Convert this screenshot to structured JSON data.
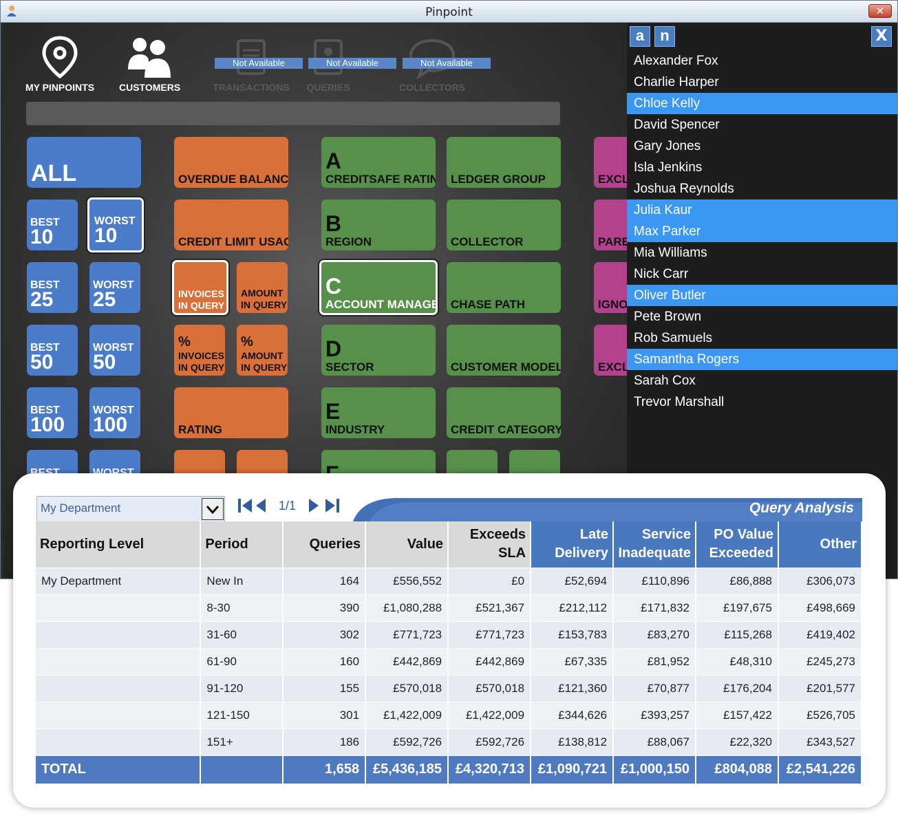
{
  "window": {
    "title": "Pinpoint"
  },
  "nav": {
    "my_pinpoints": "MY PINPOINTS",
    "customers": "CUSTOMERS",
    "transactions": "TRANSACTIONS",
    "queries": "QUERIES",
    "collectors": "COLLECTORS",
    "not_available": "Not Available"
  },
  "tiles": {
    "all": "ALL",
    "best": "BEST",
    "worst": "WORST",
    "n10": "10",
    "n25": "25",
    "n50": "50",
    "n100": "100",
    "overdue_balance": "OVERDUE BALANCE",
    "credit_limit_usage": "CREDIT LIMIT USAGE",
    "invoices_in_query_1": "INVOICES",
    "invoices_in_query_2": "IN QUERY",
    "amount_in_query_1": "AMOUNT",
    "amount_in_query_2": "IN QUERY",
    "pct": "%",
    "rating": "RATING",
    "letter_a": "A",
    "creditsafe_rating": "CREDITSAFE RATING",
    "letter_b": "B",
    "region": "REGION",
    "letter_c": "C",
    "account_manager": "ACCOUNT MANAGER",
    "letter_d": "D",
    "sector": "SECTOR",
    "letter_e": "E",
    "industry": "INDUSTRY",
    "letter_f": "F",
    "ledger_group": "LEDGER GROUP",
    "collector": "COLLECTOR",
    "chase_path": "CHASE PATH",
    "customer_model": "CUSTOMER MODEL",
    "credit_category": "CREDIT CATEGORY",
    "pink1": "EXCLU",
    "pink2": "PAREN",
    "pink3": "IGNOR",
    "pink4": "EXCLU"
  },
  "sidebar": {
    "keys": [
      "a",
      "n"
    ],
    "close": "X",
    "names": [
      {
        "name": "Alexander Fox",
        "selected": false
      },
      {
        "name": "Charlie Harper",
        "selected": false
      },
      {
        "name": "Chloe Kelly",
        "selected": true
      },
      {
        "name": "David Spencer",
        "selected": false
      },
      {
        "name": "Gary Jones",
        "selected": false
      },
      {
        "name": "Isla Jenkins",
        "selected": false
      },
      {
        "name": "Joshua Reynolds",
        "selected": false
      },
      {
        "name": "Julia Kaur",
        "selected": true
      },
      {
        "name": "Max Parker",
        "selected": true
      },
      {
        "name": "Mia Williams",
        "selected": false
      },
      {
        "name": "Nick Carr",
        "selected": false
      },
      {
        "name": "Oliver Butler",
        "selected": true
      },
      {
        "name": "Pete Brown",
        "selected": false
      },
      {
        "name": "Rob Samuels",
        "selected": false
      },
      {
        "name": "Samantha Rogers",
        "selected": true
      },
      {
        "name": "Sarah Cox",
        "selected": false
      },
      {
        "name": "Trevor Marshall",
        "selected": false
      }
    ]
  },
  "report": {
    "department": "My Department",
    "page": "1/1",
    "title": "Query Analysis",
    "columns": [
      {
        "l1": "Reporting Level",
        "l2": ""
      },
      {
        "l1": "Period",
        "l2": ""
      },
      {
        "l1": "Queries",
        "l2": ""
      },
      {
        "l1": "Value",
        "l2": ""
      },
      {
        "l1": "Exceeds",
        "l2": "SLA"
      },
      {
        "l1": "Late",
        "l2": "Delivery"
      },
      {
        "l1": "Service",
        "l2": "Inadequate"
      },
      {
        "l1": "PO Value",
        "l2": "Exceeded"
      },
      {
        "l1": "Other",
        "l2": ""
      }
    ],
    "rows": [
      [
        "My Department",
        "New In",
        "164",
        "£556,552",
        "£0",
        "£52,694",
        "£110,896",
        "£86,888",
        "£306,073"
      ],
      [
        "",
        "8-30",
        "390",
        "£1,080,288",
        "£521,367",
        "£212,112",
        "£171,832",
        "£197,675",
        "£498,669"
      ],
      [
        "",
        "31-60",
        "302",
        "£771,723",
        "£771,723",
        "£153,783",
        "£83,270",
        "£115,268",
        "£419,402"
      ],
      [
        "",
        "61-90",
        "160",
        "£442,869",
        "£442,869",
        "£67,335",
        "£81,952",
        "£48,310",
        "£245,273"
      ],
      [
        "",
        "91-120",
        "155",
        "£570,018",
        "£570,018",
        "£121,360",
        "£70,877",
        "£176,204",
        "£201,577"
      ],
      [
        "",
        "121-150",
        "301",
        "£1,422,009",
        "£1,422,009",
        "£344,626",
        "£393,257",
        "£157,422",
        "£526,705"
      ],
      [
        "",
        "151+",
        "186",
        "£592,726",
        "£592,726",
        "£138,812",
        "£88,067",
        "£22,320",
        "£343,527"
      ]
    ],
    "total": [
      "TOTAL",
      "",
      "1,658",
      "£5,436,185",
      "£4,320,713",
      "£1,090,721",
      "£1,000,150",
      "£804,088",
      "£2,541,226"
    ]
  },
  "colors": {
    "blue_tile": "#4a7cc9",
    "orange_tile": "#d9703a",
    "green_tile": "#56904a",
    "pink_tile": "#b2428e",
    "highlight": "#3c97f3",
    "table_header_blue": "#4a78bf"
  }
}
